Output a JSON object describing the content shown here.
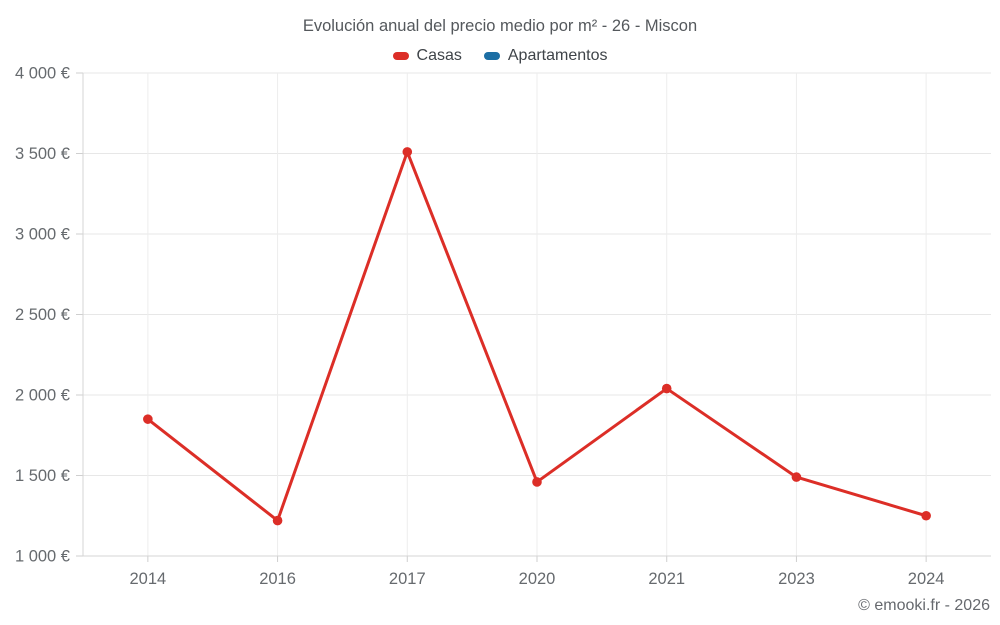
{
  "title": "Evolución anual del precio medio por m² - 26 - Miscon",
  "legend": {
    "items": [
      {
        "label": "Casas",
        "color": "#dc2e27"
      },
      {
        "label": "Apartamentos",
        "color": "#1c6ea4"
      }
    ]
  },
  "footer": {
    "credit": "© emooki.fr - 2026"
  },
  "chart_data": {
    "type": "line",
    "title": "Evolución anual del precio medio por m² - 26 - Miscon",
    "categories": [
      "2014",
      "2016",
      "2017",
      "2020",
      "2021",
      "2023",
      "2024"
    ],
    "series": [
      {
        "name": "Casas",
        "color": "#dc2e27",
        "values": [
          1850,
          1220,
          3510,
          1460,
          2040,
          1490,
          1250
        ]
      },
      {
        "name": "Apartamentos",
        "color": "#1c6ea4",
        "values": []
      }
    ],
    "xlabel": "",
    "ylabel": "",
    "ylim": [
      1000,
      4000
    ],
    "ytick_step": 500,
    "ytick_labels": [
      "1 000 €",
      "1 500 €",
      "2 000 €",
      "2 500 €",
      "3 000 €",
      "3 500 €",
      "4 000 €"
    ],
    "grid": true,
    "legend_position": "top"
  },
  "colors": {
    "background": "#ffffff",
    "grid_horizontal": "#e7e7e7",
    "grid_vertical": "#ededed",
    "axis_line": "#d4d4d4",
    "tick": "#cfcfcf",
    "axis_label": "#666a6e",
    "title_text": "#54585c"
  }
}
